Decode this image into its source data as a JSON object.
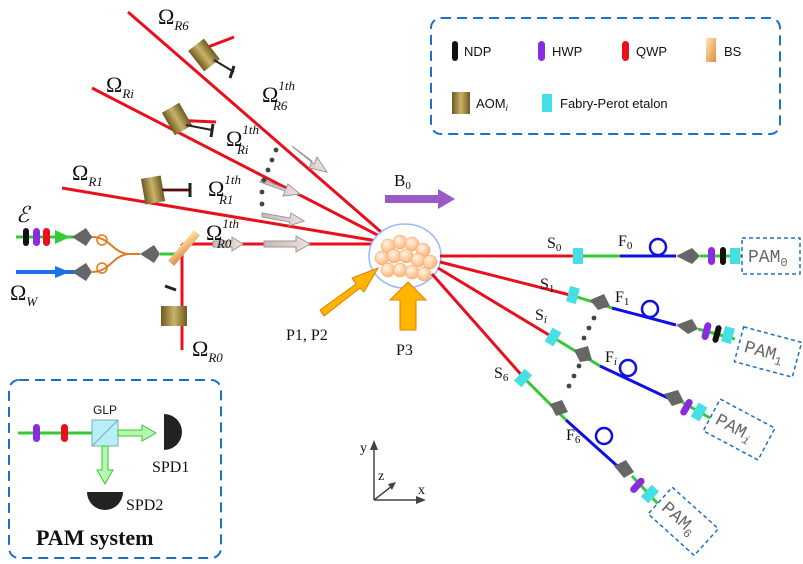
{
  "colors": {
    "red_beam": "#e8101c",
    "green_beam": "#35c935",
    "blue_beam": "#1010e0",
    "probe_blue": "#1e6fe8",
    "dashed_border": "#1e6fc8",
    "aom": "#8e7a3a",
    "hwp": "#8a2be2",
    "qwp": "#e8101c",
    "etalon": "#44e0e6",
    "atoms": "#ffc890",
    "arrow_purple": "#9b59c8",
    "arrow_yellow": "#ffb400"
  },
  "legend": {
    "items": [
      {
        "key": "ndp",
        "label": "NDP",
        "icon": "black-ellipse"
      },
      {
        "key": "hwp",
        "label": "HWP",
        "icon": "purple-ellipse"
      },
      {
        "key": "qwp",
        "label": "QWP",
        "icon": "red-ellipse"
      },
      {
        "key": "bs",
        "label": "BS",
        "icon": "gradient-plate"
      },
      {
        "key": "aom",
        "label": "AOM",
        "sub": "i",
        "icon": "brown-block"
      },
      {
        "key": "etalon",
        "label": "Fabry-Perot  etalon",
        "icon": "cyan-block"
      }
    ]
  },
  "beams": {
    "omega_r6": {
      "sym": "Ω",
      "sub": "R6"
    },
    "omega_ri": {
      "sym": "Ω",
      "sub": "Ri"
    },
    "omega_r1": {
      "sym": "Ω",
      "sub": "R1"
    },
    "omega_r0": {
      "sym": "Ω",
      "sub": "R0"
    },
    "omega_r6_1th": {
      "sym": "Ω",
      "sub": "R6",
      "sup": "1th"
    },
    "omega_ri_1th": {
      "sym": "Ω",
      "sub": "Ri",
      "sup": "1th"
    },
    "omega_r1_1th": {
      "sym": "Ω",
      "sub": "R1",
      "sup": "1th"
    },
    "omega_r0_1th": {
      "sym": "Ω",
      "sub": "R0",
      "sup": "1th"
    },
    "epsilon": "ℰ",
    "omega_w": {
      "sym": "Ω",
      "sub": "W"
    }
  },
  "field": {
    "b0": "B",
    "b0_sub": "0"
  },
  "pumps": {
    "p12": "P1, P2",
    "p3": "P3"
  },
  "outputs": [
    {
      "s": "S",
      "s_sub": "0",
      "f": "F",
      "f_sub": "0",
      "pam": "PAM",
      "pam_sub": "0"
    },
    {
      "s": "S",
      "s_sub": "1",
      "f": "F",
      "f_sub": "1",
      "pam": "PAM",
      "pam_sub": "1"
    },
    {
      "s": "S",
      "s_sub": "i",
      "f": "F",
      "f_sub": "i",
      "pam": "PAM",
      "pam_sub": "i"
    },
    {
      "s": "S",
      "s_sub": "6",
      "f": "F",
      "f_sub": "6",
      "pam": "PAM",
      "pam_sub": "6"
    }
  ],
  "pam_system": {
    "title": "PAM system",
    "glp": "GLP",
    "spd1": "SPD1",
    "spd2": "SPD2"
  },
  "axes": {
    "x": "x",
    "y": "y",
    "z": "z"
  }
}
